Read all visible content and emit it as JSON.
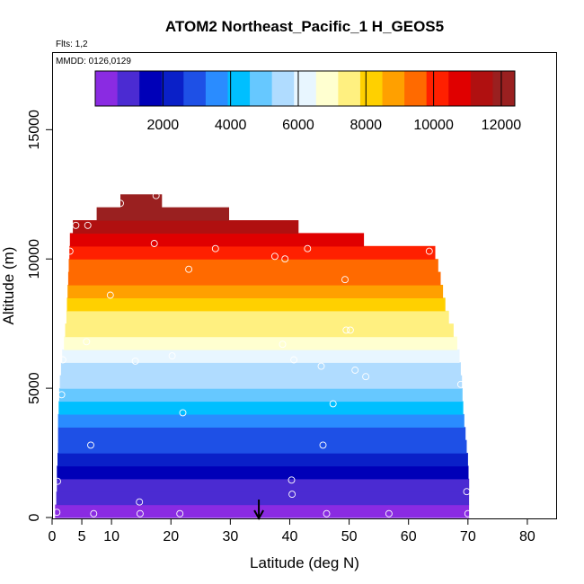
{
  "chart_data": {
    "type": "heatmap",
    "title": "ATOM2 Northeast_Pacific_1 H_GEOS5",
    "flights_label": "Flts: 1,2",
    "dates_label": "MMDD: 0126,0129",
    "xlabel": "Latitude (deg N)",
    "ylabel": "Altitude (m)",
    "xlim": [
      0,
      85
    ],
    "ylim": [
      0,
      18000
    ],
    "x_ticks": [
      0,
      5,
      10,
      20,
      30,
      40,
      50,
      60,
      70,
      80
    ],
    "x_tick_labels": [
      "0",
      "5",
      "10",
      "20",
      "30",
      "40",
      "50",
      "60",
      "70",
      "80"
    ],
    "y_ticks": [
      0,
      5000,
      10000,
      15000
    ],
    "y_tick_labels": [
      "0",
      "5000",
      "10000",
      "15000"
    ],
    "colorbar": {
      "min": 0,
      "max": 12400,
      "ticks": [
        2000,
        4000,
        6000,
        8000,
        10000,
        12000
      ],
      "tick_labels": [
        "2000",
        "4000",
        "6000",
        "8000",
        "10000",
        "12000"
      ],
      "colors": [
        "#8a2be2",
        "#4b2bd2",
        "#0000b8",
        "#0a20c8",
        "#1e50e6",
        "#2a8cff",
        "#00bfff",
        "#66c8ff",
        "#b0dcff",
        "#e8f6ff",
        "#ffffd0",
        "#fff080",
        "#ffd000",
        "#ffa000",
        "#ff6a00",
        "#ff2000",
        "#e00000",
        "#b01010",
        "#9a2020"
      ]
    },
    "bands": [
      {
        "alt_bottom": 0,
        "alt_top": 500,
        "lat_min": 0.5,
        "lat_max": 70.2,
        "value": 250
      },
      {
        "alt_bottom": 500,
        "alt_top": 1000,
        "lat_min": 0.7,
        "lat_max": 70.2,
        "value": 750
      },
      {
        "alt_bottom": 1000,
        "alt_top": 1500,
        "lat_min": 0.8,
        "lat_max": 70.2,
        "value": 1250
      },
      {
        "alt_bottom": 1500,
        "alt_top": 2000,
        "lat_min": 0.8,
        "lat_max": 70.1,
        "value": 1750
      },
      {
        "alt_bottom": 2000,
        "alt_top": 2500,
        "lat_min": 0.9,
        "lat_max": 70.0,
        "value": 2250
      },
      {
        "alt_bottom": 2500,
        "alt_top": 3000,
        "lat_min": 1.0,
        "lat_max": 69.8,
        "value": 2750
      },
      {
        "alt_bottom": 3000,
        "alt_top": 3500,
        "lat_min": 1.0,
        "lat_max": 69.6,
        "value": 3250
      },
      {
        "alt_bottom": 3500,
        "alt_top": 4000,
        "lat_min": 1.0,
        "lat_max": 69.4,
        "value": 3750
      },
      {
        "alt_bottom": 4000,
        "alt_top": 4500,
        "lat_min": 1.1,
        "lat_max": 69.2,
        "value": 4250
      },
      {
        "alt_bottom": 4500,
        "alt_top": 5000,
        "lat_min": 1.2,
        "lat_max": 69.1,
        "value": 4750
      },
      {
        "alt_bottom": 5000,
        "alt_top": 5500,
        "lat_min": 1.3,
        "lat_max": 69.0,
        "value": 5250
      },
      {
        "alt_bottom": 5500,
        "alt_top": 6000,
        "lat_min": 1.5,
        "lat_max": 68.8,
        "value": 5750
      },
      {
        "alt_bottom": 6000,
        "alt_top": 6500,
        "lat_min": 1.7,
        "lat_max": 68.6,
        "value": 6250
      },
      {
        "alt_bottom": 6500,
        "alt_top": 7000,
        "lat_min": 2.0,
        "lat_max": 68.2,
        "value": 6750
      },
      {
        "alt_bottom": 7000,
        "alt_top": 7500,
        "lat_min": 2.2,
        "lat_max": 67.6,
        "value": 7250
      },
      {
        "alt_bottom": 7500,
        "alt_top": 8000,
        "lat_min": 2.4,
        "lat_max": 66.8,
        "value": 7750
      },
      {
        "alt_bottom": 8000,
        "alt_top": 8500,
        "lat_min": 2.5,
        "lat_max": 66.2,
        "value": 8250
      },
      {
        "alt_bottom": 8500,
        "alt_top": 9000,
        "lat_min": 2.6,
        "lat_max": 65.8,
        "value": 8750
      },
      {
        "alt_bottom": 9000,
        "alt_top": 9500,
        "lat_min": 2.7,
        "lat_max": 65.4,
        "value": 9250
      },
      {
        "alt_bottom": 9500,
        "alt_top": 10000,
        "lat_min": 2.8,
        "lat_max": 65.0,
        "value": 9750
      },
      {
        "alt_bottom": 10000,
        "alt_top": 10500,
        "lat_min": 2.9,
        "lat_max": 64.5,
        "value": 10250
      },
      {
        "alt_bottom": 10500,
        "alt_top": 11000,
        "lat_min": 3.0,
        "lat_max": 52.5,
        "value": 10750
      },
      {
        "alt_bottom": 11000,
        "alt_top": 11500,
        "lat_min": 3.5,
        "lat_max": 41.5,
        "value": 11250
      },
      {
        "alt_bottom": 11500,
        "alt_top": 12000,
        "lat_min": 7.5,
        "lat_max": 29.8,
        "value": 11750
      },
      {
        "alt_bottom": 12000,
        "alt_top": 12500,
        "lat_min": 11.5,
        "lat_max": 18.5,
        "value": 12250
      }
    ],
    "obs_points": [
      {
        "lat": 0.8,
        "alt": 200
      },
      {
        "lat": 0.9,
        "alt": 1400
      },
      {
        "lat": 1.6,
        "alt": 4750
      },
      {
        "lat": 1.8,
        "alt": 6100
      },
      {
        "lat": 3.0,
        "alt": 10300
      },
      {
        "lat": 4.0,
        "alt": 11300
      },
      {
        "lat": 6.0,
        "alt": 11300
      },
      {
        "lat": 5.8,
        "alt": 6800
      },
      {
        "lat": 6.5,
        "alt": 2800
      },
      {
        "lat": 7.0,
        "alt": 150
      },
      {
        "lat": 9.8,
        "alt": 8600
      },
      {
        "lat": 11.5,
        "alt": 12150
      },
      {
        "lat": 14.0,
        "alt": 6050
      },
      {
        "lat": 14.7,
        "alt": 600
      },
      {
        "lat": 14.8,
        "alt": 150
      },
      {
        "lat": 17.2,
        "alt": 10600
      },
      {
        "lat": 17.5,
        "alt": 12450
      },
      {
        "lat": 20.2,
        "alt": 6250
      },
      {
        "lat": 21.5,
        "alt": 150
      },
      {
        "lat": 22.0,
        "alt": 4050
      },
      {
        "lat": 23.0,
        "alt": 9600
      },
      {
        "lat": 27.5,
        "alt": 10400
      },
      {
        "lat": 37.5,
        "alt": 10100
      },
      {
        "lat": 38.8,
        "alt": 6700
      },
      {
        "lat": 39.2,
        "alt": 10000
      },
      {
        "lat": 40.3,
        "alt": 1450
      },
      {
        "lat": 40.4,
        "alt": 900
      },
      {
        "lat": 40.7,
        "alt": 6100
      },
      {
        "lat": 43.0,
        "alt": 10400
      },
      {
        "lat": 45.3,
        "alt": 5850
      },
      {
        "lat": 45.6,
        "alt": 2800
      },
      {
        "lat": 46.2,
        "alt": 150
      },
      {
        "lat": 47.3,
        "alt": 4400
      },
      {
        "lat": 49.3,
        "alt": 9200
      },
      {
        "lat": 49.5,
        "alt": 7250
      },
      {
        "lat": 50.2,
        "alt": 7250
      },
      {
        "lat": 51.0,
        "alt": 5700
      },
      {
        "lat": 52.8,
        "alt": 5450
      },
      {
        "lat": 56.7,
        "alt": 150
      },
      {
        "lat": 63.5,
        "alt": 10300
      },
      {
        "lat": 68.8,
        "alt": 5150
      },
      {
        "lat": 69.8,
        "alt": 1000
      },
      {
        "lat": 70.0,
        "alt": 150
      }
    ],
    "arrow_marker_lat": 34.8
  }
}
